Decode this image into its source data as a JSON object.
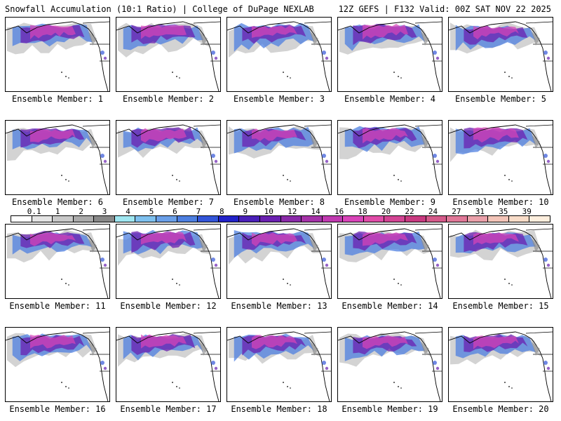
{
  "header": {
    "title_left": "Snowfall Accumulation (10:1 Ratio) | College of DuPage NEXLAB",
    "title_right": "12Z GEFS | F132 Valid: 00Z SAT NOV 22 2025"
  },
  "members": [
    {
      "label": "Ensemble Member: 1"
    },
    {
      "label": "Ensemble Member: 2"
    },
    {
      "label": "Ensemble Member: 3"
    },
    {
      "label": "Ensemble Member: 4"
    },
    {
      "label": "Ensemble Member: 5"
    },
    {
      "label": "Ensemble Member: 6"
    },
    {
      "label": "Ensemble Member: 7"
    },
    {
      "label": "Ensemble Member: 8"
    },
    {
      "label": "Ensemble Member: 9"
    },
    {
      "label": "Ensemble Member: 10"
    },
    {
      "label": "Ensemble Member: 11"
    },
    {
      "label": "Ensemble Member: 12"
    },
    {
      "label": "Ensemble Member: 13"
    },
    {
      "label": "Ensemble Member: 14"
    },
    {
      "label": "Ensemble Member: 15"
    },
    {
      "label": "Ensemble Member: 16"
    },
    {
      "label": "Ensemble Member: 17"
    },
    {
      "label": "Ensemble Member: 18"
    },
    {
      "label": "Ensemble Member: 19"
    },
    {
      "label": "Ensemble Member: 20"
    }
  ],
  "legend": {
    "units_note": "",
    "ticks": [
      "0.1",
      "1",
      "2",
      "3",
      "4",
      "5",
      "6",
      "7",
      "8",
      "9",
      "10",
      "12",
      "14",
      "16",
      "18",
      "20",
      "22",
      "24",
      "27",
      "31",
      "35",
      "39"
    ],
    "colors": [
      "#ffffff",
      "#e4e4e4",
      "#c8c8c8",
      "#aaaaaa",
      "#888888",
      "#9fe6f0",
      "#7ec0ee",
      "#6a9fe8",
      "#4d7fe0",
      "#3355d8",
      "#2222c8",
      "#4a1fb8",
      "#6a20b0",
      "#8a2aa8",
      "#a532a8",
      "#c03ab0",
      "#d844b8",
      "#e04ca8",
      "#d24493",
      "#c83a80",
      "#d45a8a",
      "#e07898",
      "#eaa0aa",
      "#f3c4b8",
      "#f8dcc8",
      "#fdeedd"
    ]
  }
}
